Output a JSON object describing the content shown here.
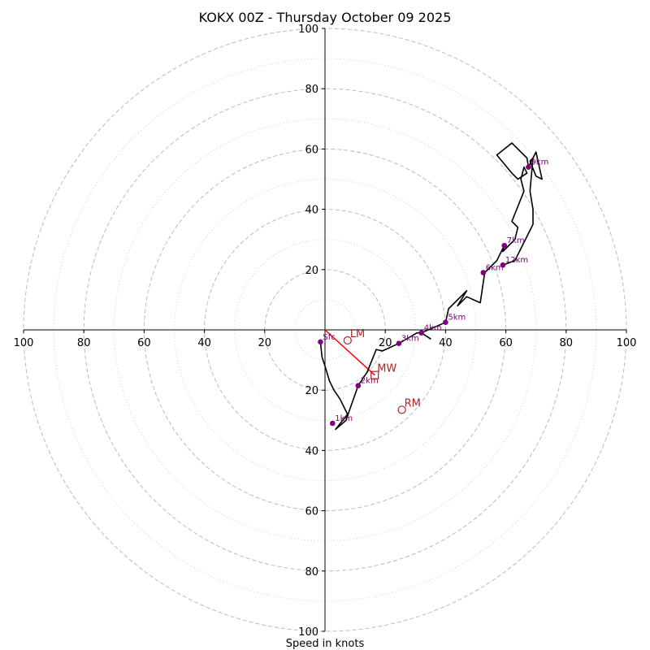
{
  "chart_data": {
    "type": "hodograph",
    "title": "KOKX 00Z - Thursday October 09 2025",
    "xlabel": "Speed in knots",
    "xlim": [
      -100,
      100
    ],
    "ylim": [
      -100,
      100
    ],
    "ring_major": [
      20,
      40,
      60,
      80,
      100
    ],
    "ring_minor": [
      10,
      30,
      50,
      70,
      90
    ],
    "x_ticks": [
      "100",
      "80",
      "60",
      "40",
      "20",
      "20",
      "40",
      "60",
      "80",
      "100"
    ],
    "x_tick_values": [
      -100,
      -80,
      -60,
      -40,
      -20,
      20,
      40,
      60,
      80,
      100
    ],
    "y_ticks": [
      "100",
      "80",
      "60",
      "40",
      "20",
      "20",
      "40",
      "60",
      "80",
      "100"
    ],
    "y_tick_values": [
      100,
      80,
      60,
      40,
      20,
      -20,
      -40,
      -60,
      -80,
      -100
    ],
    "profile": [
      [
        -1.5,
        -4
      ],
      [
        -1,
        -9
      ],
      [
        0,
        -12
      ],
      [
        1.5,
        -17
      ],
      [
        3,
        -20
      ],
      [
        5,
        -23
      ],
      [
        6.5,
        -26
      ],
      [
        7.5,
        -28
      ],
      [
        3.5,
        -33
      ],
      [
        7,
        -30
      ],
      [
        8,
        -27
      ],
      [
        11,
        -18.5
      ],
      [
        14,
        -14
      ],
      [
        17,
        -6.5
      ],
      [
        19,
        -7
      ],
      [
        24.5,
        -4.5
      ],
      [
        30.5,
        -1
      ],
      [
        32,
        -1
      ],
      [
        35,
        -3
      ],
      [
        32,
        -1
      ],
      [
        40,
        2.5
      ],
      [
        41,
        7
      ],
      [
        47,
        13
      ],
      [
        44,
        8
      ],
      [
        47,
        11
      ],
      [
        51.5,
        9
      ],
      [
        53,
        19
      ],
      [
        57,
        23
      ],
      [
        59.5,
        28
      ],
      [
        59,
        26
      ],
      [
        63,
        30
      ],
      [
        64,
        34
      ],
      [
        62,
        36
      ],
      [
        66,
        46
      ],
      [
        65,
        50
      ],
      [
        66,
        54
      ],
      [
        67,
        52
      ],
      [
        64,
        50
      ],
      [
        62,
        52
      ],
      [
        57,
        58
      ],
      [
        62,
        62
      ],
      [
        67,
        57
      ],
      [
        67.5,
        54
      ],
      [
        68.5,
        56
      ],
      [
        70,
        59
      ],
      [
        72,
        50
      ],
      [
        70,
        51
      ],
      [
        68,
        56
      ],
      [
        69,
        57
      ],
      [
        68,
        46
      ],
      [
        69,
        40
      ],
      [
        69,
        35
      ],
      [
        66,
        29
      ],
      [
        63,
        23
      ],
      [
        59,
        21.5
      ]
    ],
    "height_markers": [
      {
        "label": "Sfc",
        "x": -1.5,
        "y": -4
      },
      {
        "label": "1km",
        "x": 2.5,
        "y": -31
      },
      {
        "label": "2km",
        "x": 11,
        "y": -18.5
      },
      {
        "label": "3km",
        "x": 24.5,
        "y": -4.5
      },
      {
        "label": "4km",
        "x": 32,
        "y": -1
      },
      {
        "label": "5km",
        "x": 40,
        "y": 2.5
      },
      {
        "label": "6km",
        "x": 52.5,
        "y": 19
      },
      {
        "label": "7km",
        "x": 59.5,
        "y": 28
      },
      {
        "label": "9km",
        "x": 67.5,
        "y": 54
      },
      {
        "label": "12km",
        "x": 59,
        "y": 21.5
      }
    ],
    "storm_motion": [
      {
        "label": "LM",
        "x": 7.5,
        "y": -3.5,
        "marker": "circle"
      },
      {
        "label": "MW",
        "x": 16.5,
        "y": -15,
        "marker": "square"
      },
      {
        "label": "RM",
        "x": 25.5,
        "y": -26.5,
        "marker": "circle"
      }
    ],
    "shear_vector": {
      "from": [
        0,
        0
      ],
      "to": [
        16.5,
        -15
      ]
    },
    "colors": {
      "profile": "#000000",
      "markers": "#800080",
      "storm": "#b22222",
      "shear": "#ff0000",
      "grid": "#bbbbbb"
    }
  }
}
